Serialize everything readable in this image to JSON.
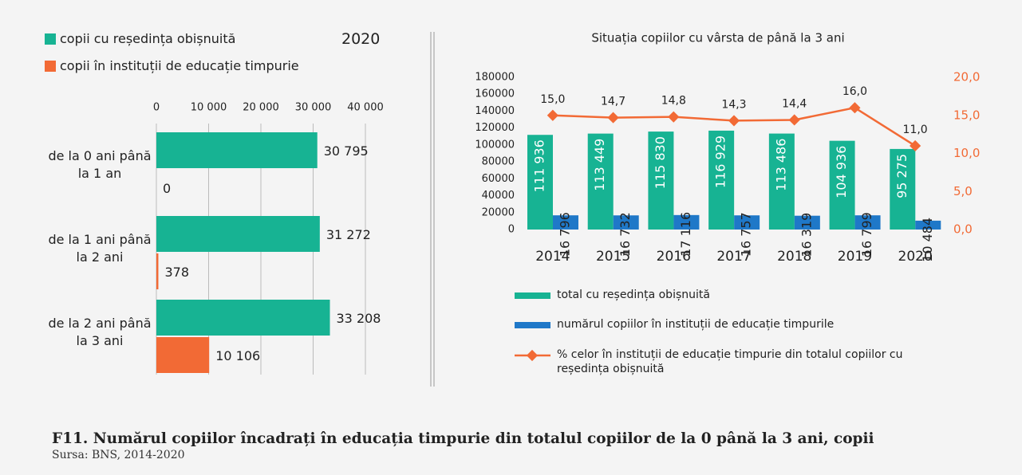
{
  "chart_data": [
    {
      "type": "hbar",
      "title": "2020",
      "categories": [
        "de la 0 ani până la 1 an",
        "de la 1 ani până la 2 ani",
        "de la 2 ani până la 3 ani"
      ],
      "series": [
        {
          "name": "copii cu reședința obișnuită",
          "color": "#17b393",
          "values": [
            30795,
            31272,
            33208
          ],
          "value_labels": [
            "30 795",
            "31 272",
            "33 208"
          ]
        },
        {
          "name": "copii în instituții de educație timpurie",
          "color": "#f26a35",
          "values": [
            0,
            378,
            10106
          ],
          "value_labels": [
            "0",
            "378",
            "10 106"
          ]
        }
      ],
      "xlim": [
        0,
        40000
      ],
      "xticks": [
        0,
        {
          "value": 10000,
          "label": "10 000"
        },
        {
          "value": 20000,
          "label": "20 000"
        },
        {
          "value": 30000,
          "label": "30 000"
        },
        {
          "value": 40000,
          "label": "40 000"
        }
      ],
      "grid": true
    },
    {
      "type": "bar_line",
      "title": "Situația copiilor cu vârsta de până la 3 ani",
      "categories": [
        "2014",
        "2015",
        "2016",
        "2017",
        "2018",
        "2019",
        "2020"
      ],
      "series": [
        {
          "name": "total cu reședința obișnuită",
          "color": "#17b393",
          "values": [
            111936,
            113449,
            115830,
            116929,
            113486,
            104936,
            95275
          ],
          "value_labels": [
            "111 936",
            "113 449",
            "115 830",
            "116 929",
            "113 486",
            "104 936",
            "95 275"
          ]
        },
        {
          "name": "numărul copiilor în instituții de educație timpurile",
          "color": "#1f78c8",
          "values": [
            16796,
            16732,
            17116,
            16757,
            16319,
            16799,
            10484
          ],
          "value_labels": [
            "16 796",
            "16 732",
            "17 116",
            "16 757",
            "16 319",
            "16 799",
            "10 484"
          ]
        },
        {
          "name": "% celor în instituții de educație timpurie din totalul copiilor cu reședința obișnuită",
          "color": "#f26a35",
          "axis": "y2",
          "values": [
            15.0,
            14.7,
            14.8,
            14.3,
            14.4,
            16.0,
            11.0
          ],
          "value_labels": [
            "15,0",
            "14,7",
            "14,8",
            "14,3",
            "14,4",
            "16,0",
            "11,0"
          ]
        }
      ],
      "ylim": [
        0,
        180000
      ],
      "yticks": [
        0,
        20000,
        40000,
        60000,
        80000,
        100000,
        120000,
        140000,
        160000,
        180000
      ],
      "y2lim": [
        0,
        20
      ],
      "y2ticks": [
        {
          "value": 0,
          "label": "0,0"
        },
        {
          "value": 5,
          "label": "5,0"
        },
        {
          "value": 10,
          "label": "10,0"
        },
        {
          "value": 15,
          "label": "15,0"
        },
        {
          "value": 20,
          "label": "20,0"
        }
      ]
    }
  ],
  "caption": "F11. Numărul copiilor încadrați în educația timpurie din totalul copiilor de la 0 până la 3 ani, copii",
  "source": "Sursa: BNS, 2014-2020"
}
